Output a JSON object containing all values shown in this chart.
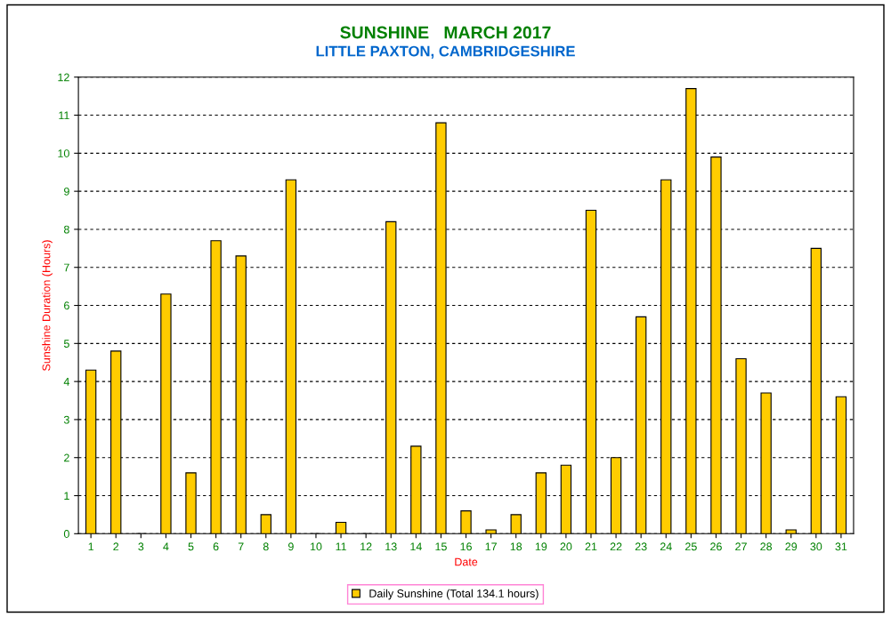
{
  "chart_data": {
    "type": "bar",
    "title": "SUNSHINE   MARCH 2017",
    "subtitle": "LITTLE PAXTON, CAMBRIDGESHIRE",
    "xlabel": "Date",
    "ylabel": "Sunshine Duration (Hours)",
    "categories": [
      "1",
      "2",
      "3",
      "4",
      "5",
      "6",
      "7",
      "8",
      "9",
      "10",
      "11",
      "12",
      "13",
      "14",
      "15",
      "16",
      "17",
      "18",
      "19",
      "20",
      "21",
      "22",
      "23",
      "24",
      "25",
      "26",
      "27",
      "28",
      "29",
      "30",
      "31"
    ],
    "series": [
      {
        "name": "Daily Sunshine (Total 134.1 hours)",
        "color": "#ffcc00",
        "values": [
          4.3,
          4.8,
          0.0,
          6.3,
          1.6,
          7.7,
          7.3,
          0.5,
          9.3,
          0.0,
          0.3,
          0.0,
          8.2,
          2.3,
          10.8,
          0.6,
          0.1,
          0.5,
          1.6,
          1.8,
          8.5,
          2.0,
          5.7,
          9.3,
          11.7,
          9.9,
          4.6,
          3.7,
          0.1,
          7.5,
          3.6
        ]
      }
    ],
    "ylim": [
      0,
      12
    ],
    "yticks": [
      0,
      1,
      2,
      3,
      4,
      5,
      6,
      7,
      8,
      9,
      10,
      11,
      12
    ],
    "grid": "y",
    "legend": "bottom"
  }
}
